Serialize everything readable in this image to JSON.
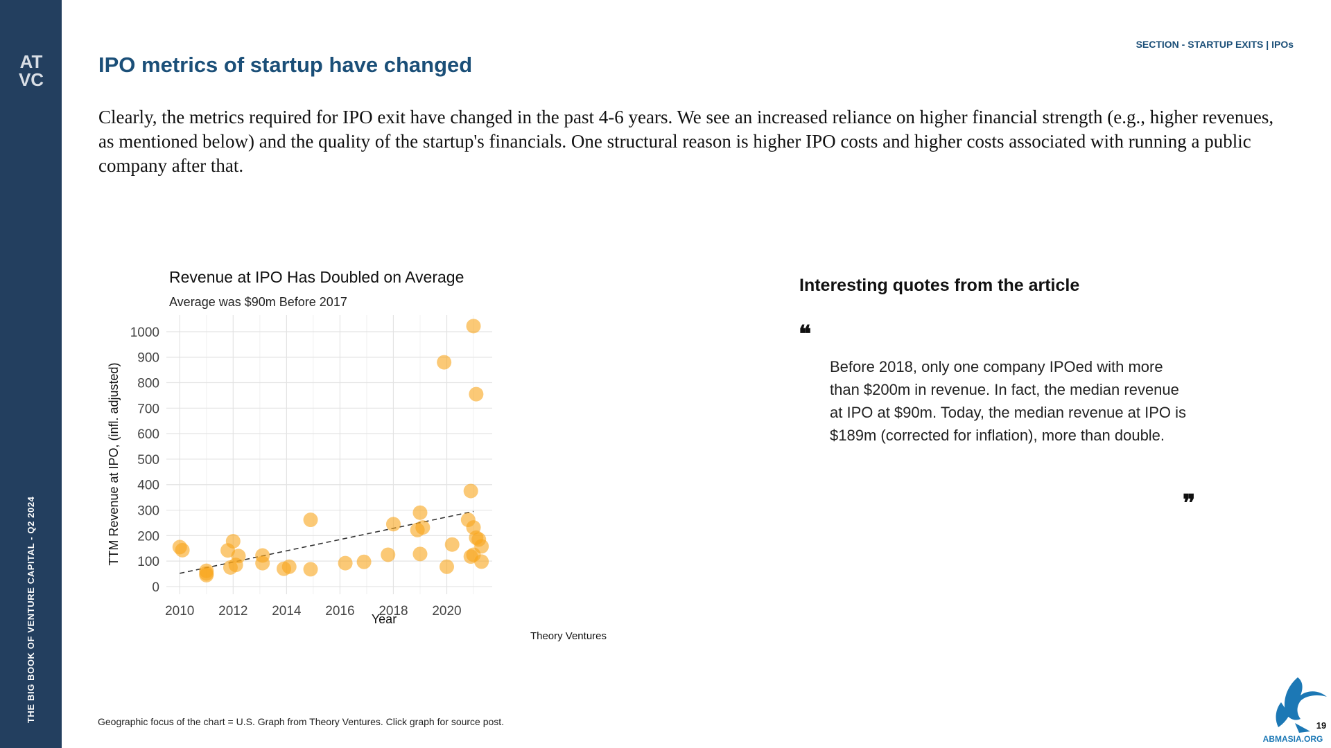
{
  "sidebar": {
    "logo_top": "AT",
    "logo_bottom": "VC",
    "vertical_text": "THE BIG BOOK OF VENTURE CAPITAL - Q2 2024"
  },
  "header": {
    "section_label": "SECTION - STARTUP EXITS | IPOs",
    "title": "IPO metrics of startup have changed"
  },
  "intro_text": "Clearly, the metrics required for IPO exit have changed in the past 4-6 years. We see an increased reliance on higher financial strength (e.g., higher revenues, as mentioned below) and the quality of the startup's financials. One structural reason is higher IPO costs and higher costs associated with running a public company after that.",
  "quotes": {
    "heading": "Interesting quotes from the article",
    "open_mark": "❝",
    "close_mark": "❞",
    "text": "Before 2018, only one company IPOed with more than $200m in revenue. In fact, the median revenue at IPO at $90m. Today, the median revenue at IPO is $189m (corrected for inflation), more than double."
  },
  "footnote": "Geographic focus of the chart = U.S. Graph from Theory Ventures. Click graph for source post.",
  "corner_logo": {
    "text": "ABMASIA.ORG",
    "number": "19"
  },
  "colors": {
    "sidebar": "#233f5f",
    "title": "#1b4f78",
    "point": "#f9a51b"
  },
  "chart_data": {
    "type": "scatter",
    "title": "Revenue at IPO Has Doubled on Average",
    "subtitle": "Average was $90m Before 2017",
    "xlabel": "Year",
    "ylabel": "TTM Revenue at IPO, (infl. adjusted)",
    "source": "Theory Ventures",
    "xlim": [
      2009.5,
      2021.7
    ],
    "ylim": [
      -30,
      1065
    ],
    "x_ticks": [
      2010,
      2012,
      2014,
      2016,
      2018,
      2020
    ],
    "y_ticks": [
      0,
      100,
      200,
      300,
      400,
      500,
      600,
      700,
      800,
      900,
      1000
    ],
    "grid": true,
    "trend_line": {
      "style": "dashed",
      "x": [
        2010,
        2021
      ],
      "y": [
        52,
        295
      ]
    },
    "points": [
      {
        "x": 2010.0,
        "y": 155
      },
      {
        "x": 2010.1,
        "y": 143
      },
      {
        "x": 2011.0,
        "y": 62
      },
      {
        "x": 2011.0,
        "y": 45
      },
      {
        "x": 2011.0,
        "y": 52
      },
      {
        "x": 2011.8,
        "y": 142
      },
      {
        "x": 2012.0,
        "y": 178
      },
      {
        "x": 2012.2,
        "y": 120
      },
      {
        "x": 2011.9,
        "y": 75
      },
      {
        "x": 2012.1,
        "y": 85
      },
      {
        "x": 2013.1,
        "y": 122
      },
      {
        "x": 2013.1,
        "y": 92
      },
      {
        "x": 2013.9,
        "y": 70
      },
      {
        "x": 2014.1,
        "y": 78
      },
      {
        "x": 2014.9,
        "y": 262
      },
      {
        "x": 2014.9,
        "y": 68
      },
      {
        "x": 2016.2,
        "y": 92
      },
      {
        "x": 2016.9,
        "y": 97
      },
      {
        "x": 2017.8,
        "y": 125
      },
      {
        "x": 2018.0,
        "y": 245
      },
      {
        "x": 2018.9,
        "y": 222
      },
      {
        "x": 2019.0,
        "y": 290
      },
      {
        "x": 2019.1,
        "y": 232
      },
      {
        "x": 2019.0,
        "y": 128
      },
      {
        "x": 2019.9,
        "y": 880
      },
      {
        "x": 2020.0,
        "y": 78
      },
      {
        "x": 2020.2,
        "y": 165
      },
      {
        "x": 2020.8,
        "y": 262
      },
      {
        "x": 2020.9,
        "y": 375
      },
      {
        "x": 2021.0,
        "y": 1022
      },
      {
        "x": 2021.1,
        "y": 755
      },
      {
        "x": 2021.0,
        "y": 232
      },
      {
        "x": 2021.1,
        "y": 192
      },
      {
        "x": 2021.3,
        "y": 158
      },
      {
        "x": 2021.2,
        "y": 185
      },
      {
        "x": 2020.9,
        "y": 118
      },
      {
        "x": 2021.0,
        "y": 125
      },
      {
        "x": 2021.3,
        "y": 98
      }
    ]
  }
}
